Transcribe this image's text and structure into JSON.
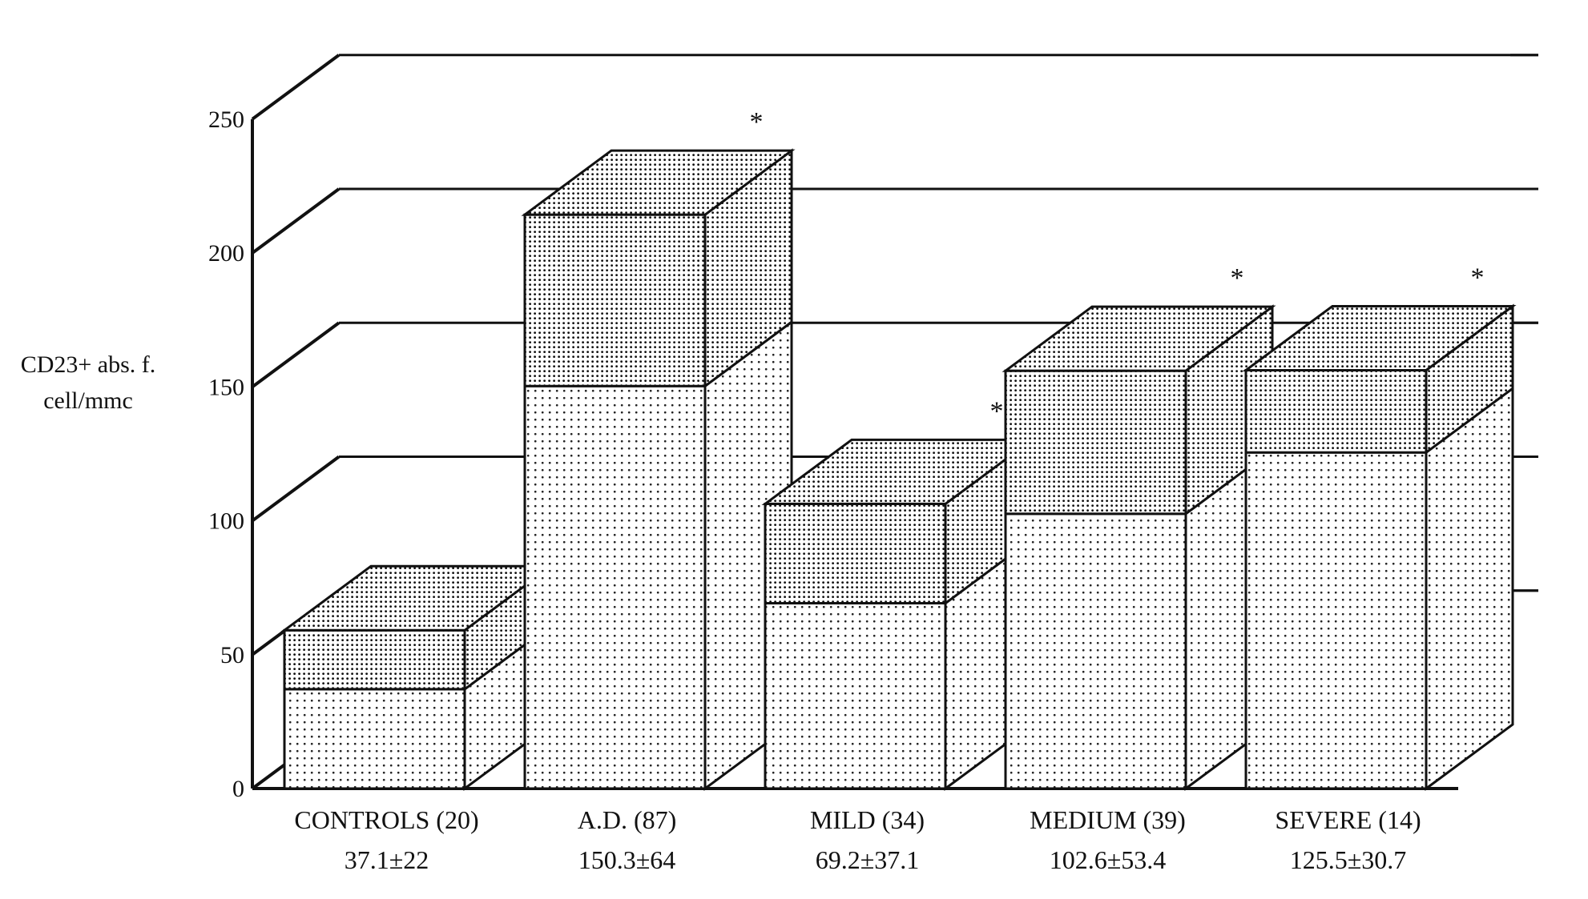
{
  "chart_data": {
    "type": "bar",
    "style": "3d-stacked",
    "ylabel": [
      "CD23+ abs. f.",
      "cell/mmc"
    ],
    "ylim": [
      0,
      250
    ],
    "yticks": [
      0,
      50,
      100,
      150,
      200,
      250
    ],
    "grid": true,
    "categories": [
      "CONTROLS (20)",
      "A.D. (87)",
      "MILD (34)",
      "MEDIUM (39)",
      "SEVERE (14)"
    ],
    "annotations": [
      "37.1±22",
      "150.3±64",
      "69.2±37.1",
      "102.6±53.4",
      "125.5±30.7"
    ],
    "significance": [
      "",
      "*",
      "*",
      "*",
      "*"
    ],
    "series": [
      {
        "values": [
          37.1,
          150.3,
          69.2,
          102.6,
          125.5
        ],
        "pattern": "light-dots"
      },
      {
        "values": [
          22.0,
          64.0,
          37.1,
          53.4,
          30.7
        ],
        "pattern": "dense-dots"
      }
    ],
    "colors": {
      "axis": "#111111",
      "face": "#ffffff",
      "dot_light": "#222222",
      "dot_dense": "#111111"
    }
  }
}
